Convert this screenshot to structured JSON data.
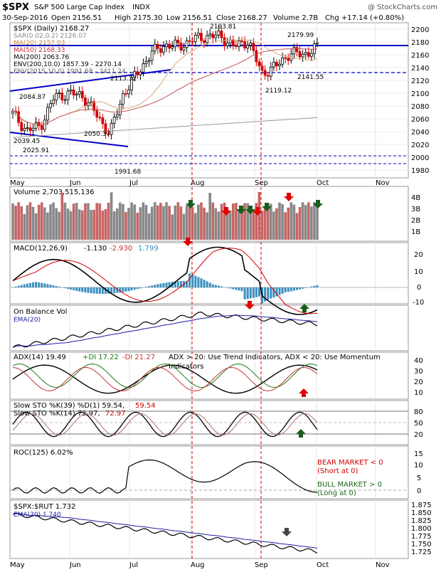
{
  "header": {
    "symbol": "$SPX",
    "name": "S&P 500 Large Cap Index",
    "exchange": "INDX",
    "watermark": "@ StockCharts.com",
    "date": "30-Sep-2016",
    "open": "Open 2156.51",
    "high": "High 2175.30",
    "low": "Low 2156.51",
    "close": "Close 2168.27",
    "volume": "Volume 2.7B",
    "change": "Chg +17.14 (+0.80%)"
  },
  "price_legend": {
    "line1": "$SPX (Daily) 2168.27",
    "line2": "SAR(0.02,0.2) 2126.07",
    "line3": "MA(20) 2157.03",
    "line4": "MA(50) 2168.33",
    "line5": "MA(200) 2063.76",
    "line6": "ENV(200,10.0) 1857.39 - 2270.14",
    "line7": "ENV(2015,10.0) 1991.68 - 2411.24"
  },
  "volume_panel": {
    "label": "Volume 2,703,515,136"
  },
  "macd_panel": {
    "label": "MACD(12,26,9)",
    "v1": "-1.130",
    "v2": "-2.930",
    "v3": "1.799"
  },
  "obv_panel": {
    "label1": "On Balance Vol",
    "label2": "EMA(20)"
  },
  "adx_panel": {
    "label": "ADX(14) 19.49",
    "di_plus": "+DI 17.22",
    "di_minus": "-DI 21.27",
    "note1": "ADX > 20: Use Trend Indicators, ADX < 20: Use Momentum",
    "note2": "Indicators"
  },
  "sto_panel": {
    "label1a": "Slow STO %K(39) %D(1) 59.54,",
    "label1b": "59.54",
    "label2a": "Slow STO %K(14) 72.97,",
    "label2b": "72.97"
  },
  "roc_panel": {
    "label": "ROC(125) 6.02%",
    "bear1": "BEAR MARKET < 0",
    "bear2": "(Short at 0)",
    "bull1": "BULL MARKET > 0",
    "bull2": "(Long at 0)"
  },
  "ratio_panel": {
    "label1": "$SPX:$RUT 1.732",
    "label2": "EMA(20) 1.740"
  },
  "months": [
    "May",
    "Jun",
    "Jul",
    "Aug",
    "Sep",
    "Oct",
    "Nov"
  ],
  "colors": {
    "up": "#000000",
    "down": "#d40000",
    "sma20": "#d9a87a",
    "sma50": "#c85050",
    "sma200": "#999999",
    "ema": "#1f1fa0",
    "blue": "#0000cc",
    "macd_hist": "#3a8fc0",
    "vol_up": "#888888",
    "vol_down": "#c86464",
    "green_arrow": "#1a5c1a",
    "red_arrow": "#e00000",
    "grey_arrow": "#444444"
  },
  "chart_data": {
    "type": "line",
    "x": [
      "2016-05-02",
      "2016-05-09",
      "2016-05-16",
      "2016-05-23",
      "2016-05-31",
      "2016-06-06",
      "2016-06-13",
      "2016-06-20",
      "2016-06-27",
      "2016-07-05",
      "2016-07-11",
      "2016-07-18",
      "2016-07-25",
      "2016-08-01",
      "2016-08-08",
      "2016-08-15",
      "2016-08-22",
      "2016-08-29",
      "2016-09-06",
      "2016-09-12",
      "2016-09-19",
      "2016-09-26",
      "2016-09-30"
    ],
    "price_close": [
      2070,
      2045,
      2052,
      2095,
      2100,
      2098,
      2070,
      2040,
      2100,
      2130,
      2160,
      2172,
      2170,
      2180,
      2185,
      2185,
      2170,
      2178,
      2130,
      2140,
      2160,
      2158,
      2168
    ],
    "price_labels": [
      {
        "label": "2084.87",
        "value": 2084.87
      },
      {
        "label": "2039.45",
        "value": 2039.45
      },
      {
        "label": "2025.91",
        "value": 2025.91
      },
      {
        "label": "2050.37",
        "value": 2050.37
      },
      {
        "label": "1991.68",
        "value": 1991.68
      },
      {
        "label": "2113.32",
        "value": 2113.32
      },
      {
        "label": "2193.81",
        "value": 2193.81
      },
      {
        "label": "2179.99",
        "value": 2179.99
      },
      {
        "label": "2119.12",
        "value": 2119.12
      },
      {
        "label": "2141.55",
        "value": 2141.55
      }
    ],
    "price_ylim": [
      1975,
      2205
    ],
    "price_ticks": [
      "2200",
      "2180",
      "2160",
      "2140",
      "2120",
      "2100",
      "2080",
      "2060",
      "2040",
      "2020",
      "2000",
      "1980"
    ],
    "volume_ticks": [
      "4B",
      "3B",
      "2B",
      "1B"
    ],
    "macd_ticks": [
      "20",
      "10",
      "0",
      "-10"
    ],
    "adx_ticks": [
      "40",
      "30",
      "20",
      "10"
    ],
    "sto_ticks": [
      "80",
      "50",
      "20"
    ],
    "roc_ticks": [
      "15",
      "10",
      "5",
      "0"
    ],
    "ratio_ticks": [
      "1.875",
      "1.850",
      "1.825",
      "1.800",
      "1.775",
      "1.750",
      "1.725"
    ]
  }
}
